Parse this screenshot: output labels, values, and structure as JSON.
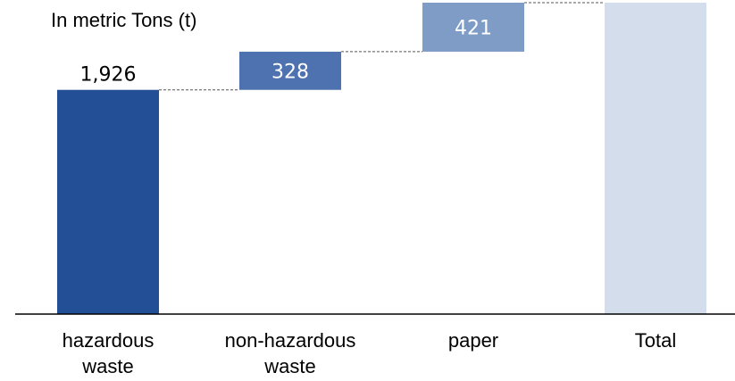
{
  "chart_data": {
    "type": "waterfall",
    "unit_label": "In metric Tons (t)",
    "categories": [
      "hazardous\nwaste",
      "non-hazardous\nwaste",
      "paper",
      "Total"
    ],
    "values": [
      1926,
      328,
      421,
      2675
    ],
    "data_labels": [
      "1,926",
      "328",
      "421",
      ""
    ],
    "colors": [
      "#234F96",
      "#4E71B0",
      "#7F9CC7",
      "#D3DDEB"
    ],
    "ylim": [
      0,
      2675
    ],
    "grid": false,
    "legend": "none"
  }
}
